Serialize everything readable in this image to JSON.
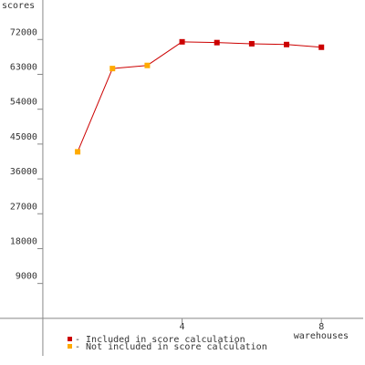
{
  "chart_data": {
    "type": "line",
    "ylabel": "scores",
    "xlabel": "warehouses",
    "x": [
      1,
      2,
      3,
      4,
      5,
      6,
      7,
      8
    ],
    "series": [
      {
        "name": "- Included in score calculation",
        "color": "#cc0000",
        "values": [
          null,
          null,
          null,
          71400,
          71200,
          70900,
          70700,
          70000
        ]
      },
      {
        "name": "- Not included in score calculation",
        "color": "#ffaa00",
        "values": [
          43000,
          64500,
          65300,
          null,
          null,
          null,
          null,
          null
        ]
      }
    ],
    "line_color": "#cc0000",
    "xlim": [
      -1.23,
      9.2
    ],
    "xticks": [
      4,
      8
    ],
    "ylim": [
      -9700,
      82200
    ],
    "yticks": [
      9000,
      18000,
      27000,
      36000,
      45000,
      54000,
      63000,
      72000
    ]
  }
}
